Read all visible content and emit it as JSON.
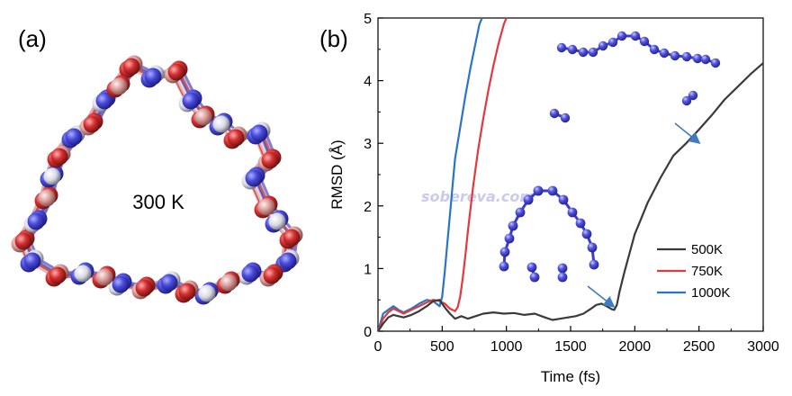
{
  "panels": {
    "a": {
      "label": "(a)",
      "temperature_text": "300 K"
    },
    "b": {
      "label": "(b)"
    }
  },
  "watermark": "sobereva.com",
  "colors": {
    "500K": "#3a3a3a",
    "750K": "#e03a3e",
    "1000K": "#2a74c8",
    "atom_blue": "#3a3ccc",
    "atom_red": "#d63030",
    "atom_pink": "#d99a98",
    "atom_white": "#d9d9e6",
    "arrow": "#3f7bbf"
  },
  "chart_data": {
    "type": "line",
    "xlabel": "Time (fs)",
    "ylabel": "RMSD (Å)",
    "xlim": [
      0,
      3000
    ],
    "ylim": [
      0,
      5
    ],
    "xticks": [
      "0",
      "500",
      "1000",
      "1500",
      "2000",
      "2500",
      "3000"
    ],
    "yticks": [
      "0",
      "1",
      "2",
      "3",
      "4",
      "5"
    ],
    "legend_position": "bottom-right",
    "series": [
      {
        "name": "500K",
        "x": [
          0,
          40,
          80,
          120,
          160,
          200,
          260,
          320,
          380,
          430,
          480,
          520,
          560,
          600,
          650,
          700,
          760,
          820,
          900,
          980,
          1060,
          1140,
          1220,
          1300,
          1360,
          1420,
          1480,
          1540,
          1600,
          1660,
          1700,
          1740,
          1780,
          1820,
          1840,
          1860,
          1880,
          1920,
          1960,
          2000,
          2050,
          2100,
          2200,
          2300,
          2400,
          2500,
          2600,
          2700,
          2800,
          2900,
          3000
        ],
        "y": [
          0.0,
          0.12,
          0.22,
          0.26,
          0.24,
          0.22,
          0.26,
          0.32,
          0.4,
          0.48,
          0.5,
          0.38,
          0.28,
          0.2,
          0.24,
          0.2,
          0.24,
          0.28,
          0.3,
          0.28,
          0.29,
          0.26,
          0.28,
          0.22,
          0.18,
          0.2,
          0.22,
          0.24,
          0.28,
          0.36,
          0.42,
          0.44,
          0.4,
          0.35,
          0.34,
          0.42,
          0.62,
          0.95,
          1.25,
          1.55,
          1.8,
          2.05,
          2.45,
          2.8,
          3.0,
          3.22,
          3.45,
          3.7,
          3.9,
          4.1,
          4.28
        ]
      },
      {
        "name": "750K",
        "x": [
          0,
          40,
          80,
          120,
          160,
          200,
          260,
          320,
          380,
          430,
          480,
          520,
          560,
          600,
          620,
          640,
          660,
          680,
          700,
          740,
          780,
          820,
          860,
          900,
          940,
          980,
          1000
        ],
        "y": [
          0.0,
          0.2,
          0.3,
          0.36,
          0.32,
          0.28,
          0.34,
          0.4,
          0.46,
          0.5,
          0.48,
          0.44,
          0.36,
          0.32,
          0.38,
          0.55,
          0.85,
          1.2,
          1.6,
          2.3,
          2.9,
          3.4,
          3.85,
          4.25,
          4.6,
          4.9,
          5.0
        ]
      },
      {
        "name": "1000K",
        "x": [
          0,
          40,
          80,
          120,
          160,
          200,
          260,
          320,
          380,
          430,
          480,
          500,
          520,
          540,
          560,
          580,
          600,
          640,
          680,
          720,
          760,
          790,
          810
        ],
        "y": [
          0.0,
          0.28,
          0.34,
          0.4,
          0.34,
          0.3,
          0.36,
          0.44,
          0.5,
          0.48,
          0.4,
          0.55,
          0.95,
          1.4,
          1.85,
          2.3,
          2.75,
          3.25,
          3.75,
          4.2,
          4.6,
          4.9,
          5.0
        ]
      }
    ]
  }
}
